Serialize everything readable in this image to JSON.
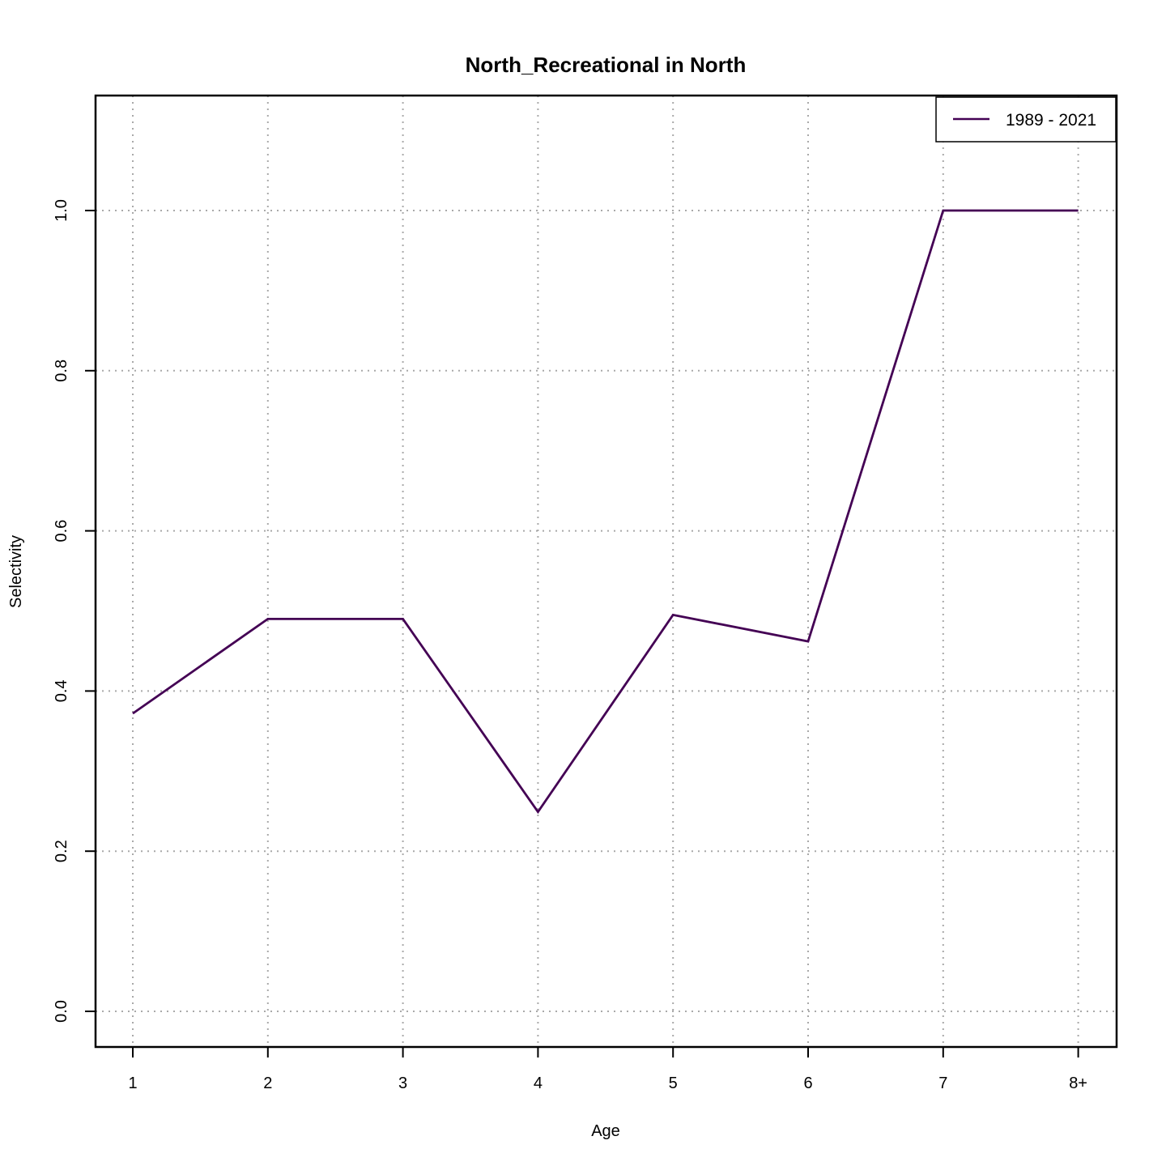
{
  "chart_data": {
    "type": "line",
    "title": "North_Recreational in North",
    "xlabel": "Age",
    "ylabel": "Selectivity",
    "categories": [
      "1",
      "2",
      "3",
      "4",
      "5",
      "6",
      "7",
      "8+"
    ],
    "ylim": [
      0,
      1.15
    ],
    "yticks": [
      "0.0",
      "0.2",
      "0.4",
      "0.6",
      "0.8",
      "1.0"
    ],
    "grid": true,
    "legend_position": "top-right",
    "series": [
      {
        "name": "1989 - 2021",
        "color": "#440154",
        "values": [
          0.372,
          0.49,
          0.49,
          0.249,
          0.495,
          0.462,
          1.0,
          1.0
        ]
      }
    ]
  }
}
